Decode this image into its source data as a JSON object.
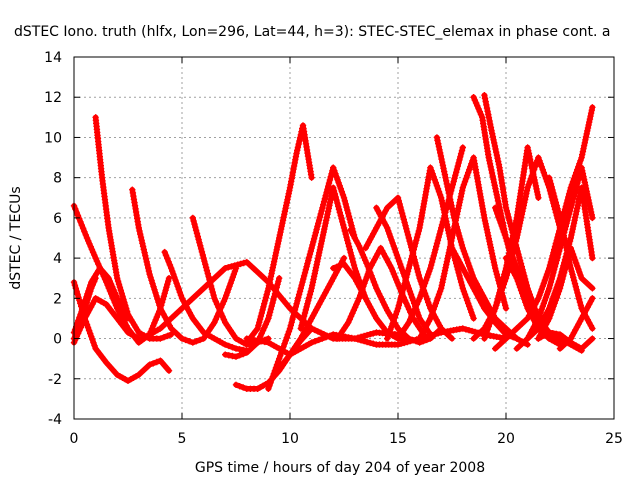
{
  "chart_data": {
    "type": "line",
    "title": "dSTEC Iono. truth (hlfx, Lon=296, Lat=44, h=3): STEC-STEC_elemax in phase cont. a",
    "xlabel": "GPS time / hours of day 204 of year 2008",
    "ylabel": "dSTEC  / TECUs",
    "xlim": [
      0,
      25
    ],
    "ylim": [
      -4,
      14
    ],
    "xticks": [
      0,
      5,
      10,
      15,
      20,
      25
    ],
    "yticks": [
      -4,
      -2,
      0,
      2,
      4,
      6,
      8,
      10,
      12,
      14
    ],
    "grid": true,
    "marker": "plus",
    "color": "#ff0000",
    "series": [
      {
        "x": [
          0.0,
          0.3,
          0.6,
          1.0,
          1.5,
          2.0,
          2.5,
          3.0,
          3.5,
          4.0,
          4.4
        ],
        "y": [
          6.6,
          5.8,
          5.0,
          4.0,
          2.8,
          1.5,
          0.5,
          -0.2,
          0.2,
          1.5,
          3.0
        ]
      },
      {
        "x": [
          0.0,
          0.5,
          1.0,
          1.5,
          2.0,
          2.5,
          3.0,
          3.5,
          4.0,
          4.4
        ],
        "y": [
          2.8,
          1.0,
          -0.5,
          -1.2,
          -1.8,
          -2.1,
          -1.8,
          -1.3,
          -1.1,
          -1.6
        ]
      },
      {
        "x": [
          0.0,
          0.5,
          1.0,
          1.5,
          2.0,
          2.5,
          3.0
        ],
        "y": [
          -0.2,
          1.0,
          2.0,
          1.7,
          1.0,
          0.3,
          0.0
        ]
      },
      {
        "x": [
          1.0,
          1.3,
          1.6,
          2.0,
          2.5,
          3.0,
          3.5,
          4.0,
          4.5
        ],
        "y": [
          11.0,
          8.0,
          5.5,
          3.0,
          1.2,
          0.3,
          0.0,
          0.0,
          0.2
        ]
      },
      {
        "x": [
          0.0,
          0.4,
          0.8,
          1.2,
          1.6,
          2.0,
          2.5
        ],
        "y": [
          0.3,
          1.5,
          2.8,
          3.5,
          3.0,
          2.0,
          1.0
        ]
      },
      {
        "x": [
          2.7,
          3.0,
          3.5,
          4.0,
          4.5,
          5.0,
          5.5,
          6.0,
          6.5,
          7.0,
          7.5
        ],
        "y": [
          7.4,
          5.5,
          3.2,
          1.5,
          0.5,
          0.0,
          -0.2,
          0.0,
          0.8,
          2.0,
          3.5
        ]
      },
      {
        "x": [
          4.2,
          4.5,
          5.0,
          5.5,
          6.0,
          6.5,
          7.0,
          7.5,
          8.0
        ],
        "y": [
          4.3,
          3.5,
          2.0,
          1.0,
          0.3,
          0.0,
          -0.3,
          -0.5,
          -0.6
        ]
      },
      {
        "x": [
          5.5,
          6.0,
          6.5,
          7.0,
          7.5,
          8.0,
          8.5,
          9.0
        ],
        "y": [
          6.0,
          4.0,
          2.0,
          0.8,
          0.0,
          -0.3,
          -0.2,
          0.0
        ]
      },
      {
        "x": [
          3.0,
          4.0,
          5.0,
          6.0,
          7.0,
          8.0,
          9.0,
          10.0,
          11.0,
          12.0,
          13.0,
          14.0,
          15.0
        ],
        "y": [
          -0.1,
          0.5,
          1.5,
          2.5,
          3.5,
          3.8,
          2.8,
          1.5,
          0.5,
          0.0,
          0.0,
          0.3,
          0.2
        ]
      },
      {
        "x": [
          7.0,
          7.5,
          8.0,
          8.5,
          9.0,
          9.5
        ],
        "y": [
          -0.8,
          -0.9,
          -0.7,
          -0.2,
          1.0,
          3.0
        ]
      },
      {
        "x": [
          7.5,
          8.0,
          8.5,
          9.0,
          9.5,
          10.0,
          10.5,
          11.0
        ],
        "y": [
          -2.3,
          -2.5,
          -2.5,
          -2.2,
          -1.6,
          -0.8,
          -0.1,
          0.5
        ]
      },
      {
        "x": [
          8.0,
          8.5,
          9.0,
          9.5,
          10.0,
          10.5,
          11.0,
          11.5,
          12.0,
          13.0,
          14.0,
          15.0,
          16.0,
          17.0,
          18.0,
          19.0,
          20.0
        ],
        "y": [
          0.0,
          -0.1,
          -0.2,
          -0.5,
          -0.8,
          -0.5,
          -0.2,
          0.0,
          0.2,
          0.0,
          -0.3,
          -0.3,
          0.0,
          0.3,
          0.5,
          0.2,
          0.0
        ]
      },
      {
        "x": [
          8.0,
          8.5,
          9.0,
          9.5,
          10.0,
          10.3,
          10.6,
          11.0
        ],
        "y": [
          -0.2,
          0.5,
          2.5,
          5.0,
          7.5,
          9.2,
          10.6,
          8.0
        ]
      },
      {
        "x": [
          9.0,
          9.5,
          10.0,
          10.5,
          11.0,
          11.5,
          12.0,
          12.5,
          13.0
        ],
        "y": [
          -2.5,
          -1.0,
          0.5,
          2.5,
          4.5,
          6.5,
          8.5,
          7.0,
          5.0
        ]
      },
      {
        "x": [
          9.5,
          10.0,
          10.5,
          11.0,
          11.5,
          12.0,
          12.5
        ],
        "y": [
          -1.5,
          -0.8,
          0.0,
          1.0,
          2.0,
          3.0,
          4.0
        ]
      },
      {
        "x": [
          10.5,
          11.0,
          11.5,
          12.0,
          12.5,
          13.0,
          13.5
        ],
        "y": [
          0.5,
          2.5,
          5.0,
          7.5,
          5.5,
          3.5,
          2.0
        ]
      },
      {
        "x": [
          12.0,
          12.5,
          13.0,
          13.5,
          14.0,
          14.5,
          15.0,
          15.5
        ],
        "y": [
          3.5,
          3.7,
          3.0,
          2.0,
          1.0,
          0.3,
          0.0,
          0.0
        ]
      },
      {
        "x": [
          12.2,
          12.7,
          13.2,
          13.7,
          14.2,
          14.7,
          15.2,
          15.7,
          16.2
        ],
        "y": [
          0.0,
          0.8,
          2.0,
          3.5,
          4.5,
          3.5,
          2.2,
          1.0,
          0.2
        ]
      },
      {
        "x": [
          12.8,
          13.2,
          13.6,
          14.0,
          14.5,
          15.0,
          15.5,
          16.0,
          16.5,
          17.0
        ],
        "y": [
          5.4,
          4.6,
          3.6,
          2.5,
          1.4,
          0.5,
          0.0,
          -0.2,
          0.0,
          0.5
        ]
      },
      {
        "x": [
          13.5,
          14.0,
          14.5,
          15.0,
          15.5,
          16.0,
          16.5,
          17.0,
          17.5
        ],
        "y": [
          4.5,
          5.5,
          6.5,
          7.0,
          5.0,
          3.0,
          1.5,
          0.5,
          0.0
        ]
      },
      {
        "x": [
          14.0,
          14.5,
          15.0,
          15.5,
          16.0,
          16.5
        ],
        "y": [
          6.5,
          5.5,
          4.0,
          2.5,
          1.0,
          0.2
        ]
      },
      {
        "x": [
          14.5,
          15.0,
          15.5,
          16.0,
          16.5,
          17.0,
          17.5,
          18.0,
          18.5
        ],
        "y": [
          0.0,
          1.5,
          3.5,
          5.5,
          8.5,
          7.0,
          4.5,
          2.5,
          1.0
        ]
      },
      {
        "x": [
          15.0,
          15.5,
          16.0,
          16.5,
          17.0,
          17.5,
          18.0
        ],
        "y": [
          0.0,
          0.8,
          2.0,
          3.5,
          5.5,
          7.5,
          9.5
        ]
      },
      {
        "x": [
          16.0,
          16.5,
          17.0,
          17.5,
          18.0,
          18.5,
          19.0,
          19.5,
          20.0
        ],
        "y": [
          0.0,
          1.0,
          2.5,
          5.0,
          7.5,
          9.0,
          6.0,
          3.5,
          1.5
        ]
      },
      {
        "x": [
          16.8,
          17.2,
          17.6,
          18.0,
          18.5,
          19.0,
          19.5,
          20.0,
          20.5
        ],
        "y": [
          10.0,
          8.0,
          6.0,
          4.5,
          3.0,
          2.0,
          1.0,
          0.5,
          0.0
        ]
      },
      {
        "x": [
          17.5,
          18.0,
          18.5,
          19.0,
          19.5,
          20.0,
          20.5,
          21.0
        ],
        "y": [
          4.5,
          3.5,
          2.5,
          1.5,
          0.8,
          0.2,
          0.0,
          -0.3
        ]
      },
      {
        "x": [
          18.5,
          18.9,
          19.2,
          19.6,
          20.0,
          20.5,
          21.0,
          21.5,
          22.0
        ],
        "y": [
          12.0,
          11.0,
          9.0,
          7.0,
          5.0,
          3.0,
          1.5,
          0.5,
          0.0
        ]
      },
      {
        "x": [
          19.0,
          19.3,
          19.7,
          20.0,
          20.5,
          21.0,
          21.5,
          22.0,
          22.5
        ],
        "y": [
          12.1,
          10.5,
          8.5,
          6.5,
          4.5,
          2.5,
          1.0,
          0.0,
          -0.3
        ]
      },
      {
        "x": [
          19.0,
          19.5,
          20.0,
          20.5,
          21.0,
          21.5
        ],
        "y": [
          0.0,
          1.5,
          3.5,
          6.0,
          9.5,
          7.0
        ]
      },
      {
        "x": [
          18.5,
          19.0,
          19.5,
          20.0,
          20.5,
          21.0,
          21.5,
          22.0,
          22.5
        ],
        "y": [
          0.0,
          0.5,
          1.5,
          3.0,
          5.0,
          7.5,
          9.0,
          7.5,
          5.5
        ]
      },
      {
        "x": [
          19.5,
          20.0,
          20.5,
          21.0,
          21.5,
          22.0,
          22.5
        ],
        "y": [
          6.5,
          5.0,
          3.5,
          2.0,
          1.0,
          0.2,
          -0.3
        ]
      },
      {
        "x": [
          19.5,
          20.0,
          20.5,
          21.0,
          21.5,
          22.0,
          22.5,
          23.0,
          23.5,
          24.0
        ],
        "y": [
          -0.5,
          0.0,
          0.5,
          1.0,
          2.0,
          3.5,
          5.5,
          7.5,
          9.0,
          11.5
        ]
      },
      {
        "x": [
          20.5,
          21.0,
          21.5,
          22.0,
          22.5,
          23.0,
          23.5,
          24.0
        ],
        "y": [
          -0.5,
          0.0,
          1.0,
          2.5,
          4.5,
          6.5,
          8.5,
          6.0
        ]
      },
      {
        "x": [
          21.0,
          21.5,
          22.0,
          22.5,
          23.0,
          23.5,
          24.0
        ],
        "y": [
          0.0,
          0.5,
          1.5,
          3.0,
          5.0,
          7.5,
          4.0
        ]
      },
      {
        "x": [
          21.5,
          22.0,
          22.5,
          23.0,
          23.5,
          24.0
        ],
        "y": [
          0.0,
          1.0,
          2.5,
          4.5,
          3.0,
          2.5
        ]
      },
      {
        "x": [
          22.0,
          22.5,
          23.0,
          23.5,
          24.0
        ],
        "y": [
          8.0,
          6.0,
          3.5,
          1.5,
          0.5
        ]
      },
      {
        "x": [
          22.5,
          23.0,
          23.5,
          24.0
        ],
        "y": [
          -0.5,
          0.0,
          1.0,
          2.0
        ]
      },
      {
        "x": [
          20.0,
          20.5,
          21.0,
          21.5,
          22.0,
          22.5,
          23.0,
          23.5
        ],
        "y": [
          4.0,
          3.0,
          2.0,
          1.0,
          0.3,
          0.0,
          -0.3,
          -0.6
        ]
      },
      {
        "x": [
          21.5,
          22.0,
          22.5,
          23.0,
          23.5,
          24.0
        ],
        "y": [
          0.0,
          0.3,
          0.2,
          -0.2,
          -0.5,
          0.0
        ]
      },
      {
        "x": [
          0.0,
          0.2,
          0.5,
          0.8,
          1.0
        ],
        "y": [
          0.0,
          0.5,
          1.5,
          2.5,
          3.0
        ]
      }
    ]
  }
}
